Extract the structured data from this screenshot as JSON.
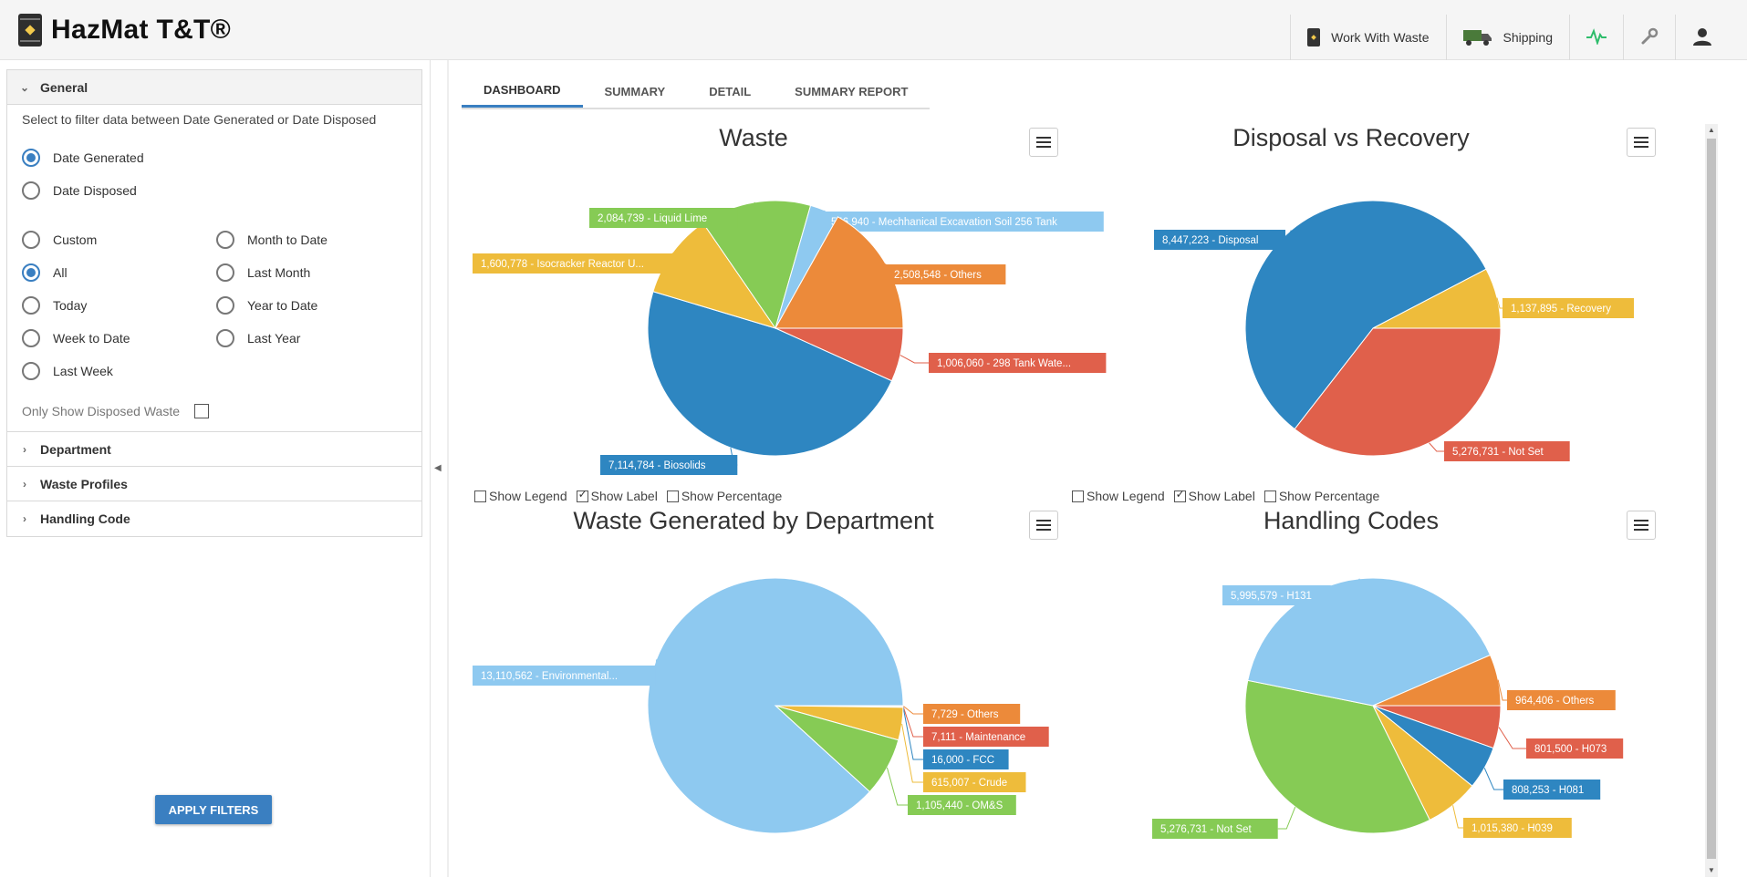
{
  "app": {
    "title": "HazMat T&T®"
  },
  "topnav": [
    {
      "label": "Work With Waste",
      "icon": "waste-drum-icon"
    },
    {
      "label": "Shipping",
      "icon": "truck-icon"
    },
    {
      "label": "",
      "icon": "activity-pulse-icon"
    },
    {
      "label": "",
      "icon": "wrench-icon"
    },
    {
      "label": "",
      "icon": "user-icon"
    }
  ],
  "sidebar": {
    "general": {
      "title": "General",
      "hint": "Select to filter data between Date Generated or Date Disposed",
      "date_type": [
        {
          "label": "Date Generated",
          "checked": true
        },
        {
          "label": "Date Disposed",
          "checked": false
        }
      ],
      "ranges": [
        {
          "label": "Custom",
          "checked": false
        },
        {
          "label": "All",
          "checked": true
        },
        {
          "label": "Today",
          "checked": false
        },
        {
          "label": "Week to Date",
          "checked": false
        },
        {
          "label": "Last Week",
          "checked": false
        },
        {
          "label": "Month to Date",
          "checked": false
        },
        {
          "label": "Last Month",
          "checked": false
        },
        {
          "label": "Year to Date",
          "checked": false
        },
        {
          "label": "Last Year",
          "checked": false
        }
      ],
      "only_disposed_label": "Only Show Disposed Waste"
    },
    "sections": [
      "Department",
      "Waste Profiles",
      "Handling Code"
    ],
    "apply_label": "APPLY FILTERS"
  },
  "tabs": [
    "DASHBOARD",
    "SUMMARY",
    "DETAIL",
    "SUMMARY REPORT"
  ],
  "options": {
    "legend": "Show Legend",
    "label": "Show Label",
    "percentage": "Show Percentage"
  },
  "colors": {
    "blue": "#2e86c1",
    "light_blue": "#8ec9f0",
    "green": "#86cb55",
    "orange": "#ec8a3a",
    "red": "#e0604b",
    "yellow": "#eebc3b"
  },
  "chart_data": [
    {
      "type": "pie",
      "title": "Waste",
      "show_legend": false,
      "show_label": true,
      "show_percentage": false,
      "slices": [
        {
          "value": 1006060,
          "label": "1,006,060 - 298 Tank Wate...",
          "color": "#e0604b"
        },
        {
          "value": 7114784,
          "label": "7,114,784 - Biosolids",
          "color": "#2e86c1"
        },
        {
          "value": 1600778,
          "label": "1,600,778 - Isocracker Reactor U...",
          "color": "#eebc3b"
        },
        {
          "value": 2084739,
          "label": "2,084,739 - Liquid Lime",
          "color": "#86cb55"
        },
        {
          "value": 546940,
          "label": "546,940 - Mechhanical Excavation Soil 256 Tank",
          "color": "#8ec9f0"
        },
        {
          "value": 2508548,
          "label": "2,508,548 - Others",
          "color": "#ec8a3a"
        }
      ]
    },
    {
      "type": "pie",
      "title": "Disposal vs Recovery",
      "show_legend": false,
      "show_label": true,
      "show_percentage": false,
      "slices": [
        {
          "value": 5276731,
          "label": "5,276,731 - Not Set",
          "color": "#e0604b"
        },
        {
          "value": 8447223,
          "label": "8,447,223 - Disposal",
          "color": "#2e86c1"
        },
        {
          "value": 1137895,
          "label": "1,137,895 - Recovery",
          "color": "#eebc3b"
        }
      ]
    },
    {
      "type": "pie",
      "title": "Waste Generated by Department",
      "slices": [
        {
          "value": 7729,
          "label": "7,729 - Others",
          "color": "#ec8a3a"
        },
        {
          "value": 7111,
          "label": "7,111 - Maintenance",
          "color": "#e0604b"
        },
        {
          "value": 16000,
          "label": "16,000 - FCC",
          "color": "#2e86c1"
        },
        {
          "value": 615007,
          "label": "615,007 - Crude",
          "color": "#eebc3b"
        },
        {
          "value": 1105440,
          "label": "1,105,440 - OM&S",
          "color": "#86cb55"
        },
        {
          "value": 13110562,
          "label": "13,110,562 - Environmental...",
          "color": "#8ec9f0"
        }
      ]
    },
    {
      "type": "pie",
      "title": "Handling Codes",
      "slices": [
        {
          "value": 801500,
          "label": "801,500 - H073",
          "color": "#e0604b"
        },
        {
          "value": 808253,
          "label": "808,253 - H081",
          "color": "#2e86c1"
        },
        {
          "value": 1015380,
          "label": "1,015,380 - H039",
          "color": "#eebc3b"
        },
        {
          "value": 5276731,
          "label": "5,276,731 - Not Set",
          "color": "#86cb55"
        },
        {
          "value": 5995579,
          "label": "5,995,579 - H131",
          "color": "#8ec9f0"
        },
        {
          "value": 964406,
          "label": "964,406 - Others",
          "color": "#ec8a3a"
        }
      ]
    }
  ]
}
